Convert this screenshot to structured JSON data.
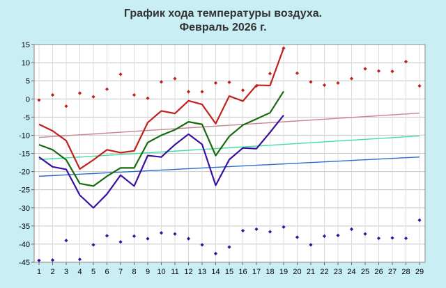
{
  "chart_data": {
    "type": "line",
    "title": "График хода температуры воздуха.",
    "subtitle": "Февраль 2026 г.",
    "x_ticks": [
      1,
      2,
      3,
      4,
      5,
      6,
      7,
      8,
      9,
      10,
      11,
      12,
      13,
      14,
      15,
      16,
      17,
      18,
      19,
      20,
      21,
      22,
      23,
      24,
      25,
      26,
      27,
      28,
      29
    ],
    "y_ticks": [
      15,
      10,
      5,
      0,
      -5,
      -10,
      -15,
      -20,
      -25,
      -30,
      -35,
      -40,
      -45
    ],
    "xlim": [
      1,
      29
    ],
    "ylim": [
      -45,
      15
    ],
    "grid": true,
    "series": [
      {
        "kind": "line",
        "color": "#c0201c",
        "x": [
          1,
          2,
          3,
          4,
          5,
          6,
          7,
          8,
          9,
          10,
          11,
          12,
          13,
          14,
          15,
          16,
          17,
          18,
          19
        ],
        "values": [
          -7,
          -8.8,
          -11.5,
          -19.3,
          -16.8,
          -14,
          -14.8,
          -14.3,
          -6.5,
          -3.3,
          -4,
          -0.5,
          -1.5,
          -6.8,
          0.8,
          -0.6,
          3.8,
          3.7,
          14
        ]
      },
      {
        "kind": "line",
        "color": "#186a10",
        "x": [
          1,
          2,
          3,
          4,
          5,
          6,
          7,
          8,
          9,
          10,
          11,
          12,
          13,
          14,
          15,
          16,
          17,
          18,
          19
        ],
        "values": [
          -12.6,
          -14,
          -16.8,
          -23.3,
          -24,
          -21.3,
          -19,
          -19,
          -12,
          -10,
          -8.5,
          -6.3,
          -7,
          -15.6,
          -10.3,
          -7.2,
          -5.5,
          -3.8,
          2.1
        ]
      },
      {
        "kind": "line",
        "color": "#3a10a0",
        "x": [
          1,
          2,
          3,
          4,
          5,
          6,
          7,
          8,
          9,
          10,
          11,
          12,
          13,
          14,
          15,
          16,
          17,
          18,
          19
        ],
        "values": [
          -16,
          -18.7,
          -19.4,
          -26.5,
          -30,
          -26.2,
          -21,
          -24,
          -15.6,
          -16,
          -12.6,
          -9.7,
          -12.5,
          -23.8,
          -16.7,
          -13.5,
          -13.7,
          -9.2,
          -4.5
        ]
      },
      {
        "kind": "scatter",
        "color": "#c0201c",
        "x": [
          1,
          2,
          3,
          4,
          5,
          6,
          7,
          8,
          9,
          10,
          11,
          12,
          13,
          14,
          15,
          16,
          17,
          18,
          19,
          20,
          21,
          22,
          23,
          24,
          25,
          26,
          27,
          28,
          29
        ],
        "values": [
          -0.3,
          1.1,
          -2,
          1.6,
          0.6,
          2.7,
          6.8,
          1.1,
          0.2,
          4.7,
          5.6,
          2,
          2,
          4.4,
          4.6,
          2.4,
          3.6,
          7,
          14,
          7.1,
          4.7,
          3.8,
          4.4,
          5.6,
          8.3,
          7.7,
          7.6,
          10.3,
          3.6
        ]
      },
      {
        "kind": "scatter",
        "color": "#3a10a0",
        "x": [
          1,
          2,
          3,
          4,
          5,
          6,
          7,
          8,
          9,
          10,
          11,
          12,
          13,
          14,
          15,
          16,
          17,
          18,
          19,
          20,
          21,
          22,
          23,
          24,
          25,
          26,
          27,
          28,
          29
        ],
        "values": [
          -44.5,
          -44.4,
          -39,
          -44.2,
          -40.2,
          -37.7,
          -39.4,
          -37.8,
          -38.5,
          -36.9,
          -37.2,
          -38.5,
          -40.2,
          -42.6,
          -40.8,
          -36.3,
          -35.9,
          -36.6,
          -35.3,
          -38.1,
          -40.2,
          -37.8,
          -37.6,
          -35.9,
          -37.2,
          -38.4,
          -38.3,
          -38.4,
          -33.4
        ]
      },
      {
        "kind": "trend",
        "color": "#c9858e",
        "x": [
          1,
          29
        ],
        "values": [
          -10.6,
          -3.9
        ]
      },
      {
        "kind": "trend",
        "color": "#44dda0",
        "x": [
          1,
          29
        ],
        "values": [
          -16.7,
          -10.2
        ]
      },
      {
        "kind": "trend",
        "color": "#2a6cc8",
        "x": [
          1,
          29
        ],
        "values": [
          -21.3,
          -16
        ]
      }
    ]
  }
}
